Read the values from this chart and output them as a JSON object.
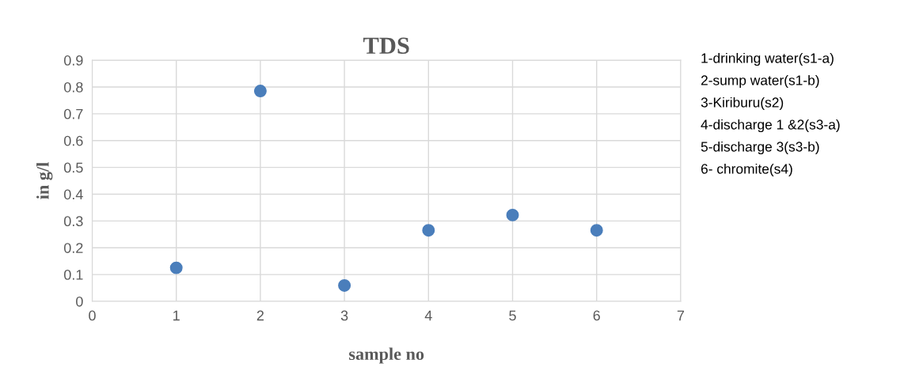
{
  "chart_data": {
    "type": "scatter",
    "title": "TDS",
    "xlabel": "sample no",
    "ylabel": "in g/l",
    "x": [
      1,
      2,
      3,
      4,
      5,
      6
    ],
    "series": [
      {
        "color": "#4a7ebb",
        "values": [
          0.125,
          0.785,
          0.059,
          0.265,
          0.322,
          0.265
        ]
      }
    ],
    "xlim": [
      0,
      7
    ],
    "xticks": [
      0,
      1,
      2,
      3,
      4,
      5,
      6,
      7
    ],
    "ylim": [
      0,
      0.9
    ],
    "yticks": [
      0,
      0.1,
      0.2,
      0.3,
      0.4,
      0.5,
      0.6,
      0.7,
      0.8,
      0.9
    ],
    "grid": true,
    "marker": "circle",
    "legend": false,
    "annotations": [
      "1-drinking water(s1-a)",
      "2-sump water(s1-b)",
      "3-Kiriburu(s2)",
      "4-discharge 1 &2(s3-a)",
      "5-discharge 3(s3-b)",
      "6- chromite(s4)"
    ]
  }
}
